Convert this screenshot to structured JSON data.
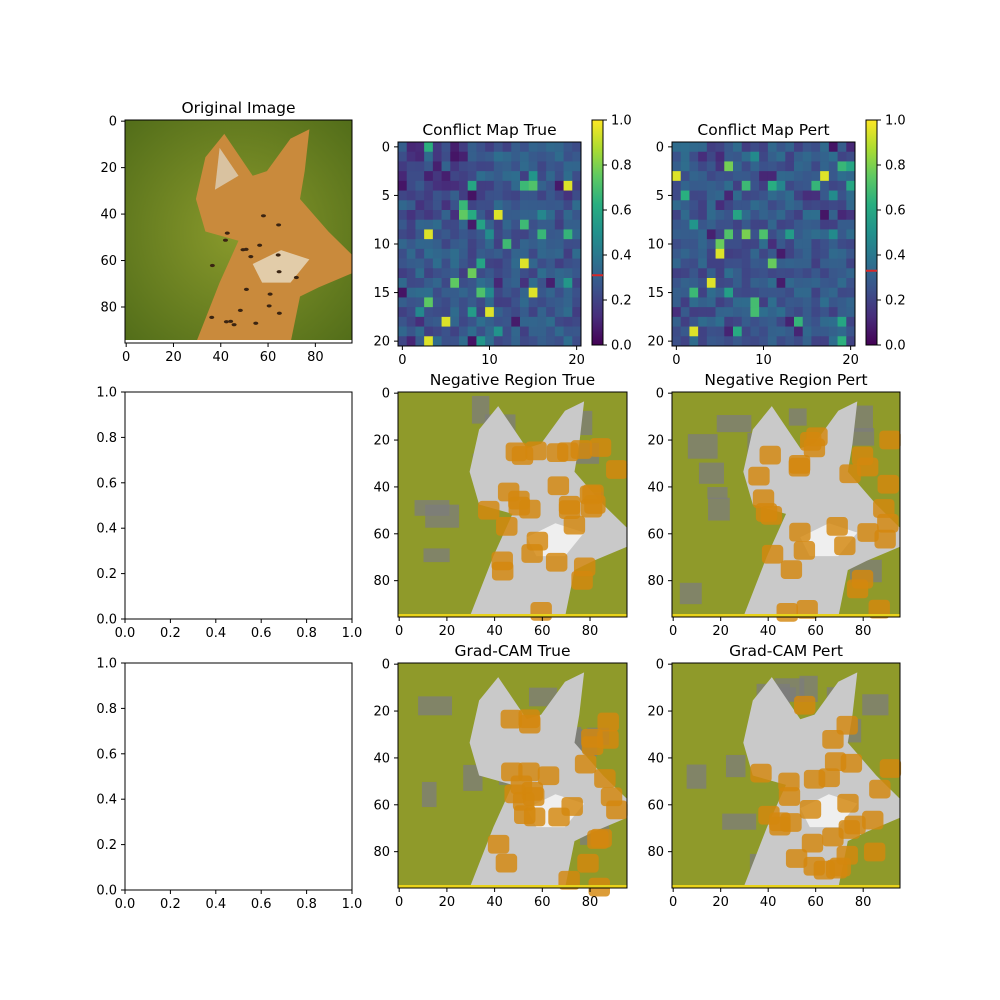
{
  "chart_data": [
    {
      "type": "image",
      "title": "Original Image",
      "x_ticks": [
        0,
        20,
        40,
        60,
        80
      ],
      "y_ticks": [
        0,
        20,
        40,
        60,
        80
      ],
      "xlim": [
        -0.5,
        95.5
      ],
      "ylim": [
        95.5,
        -0.5
      ]
    },
    {
      "type": "heatmap",
      "title": "Conflict Map True",
      "grid_size": 21,
      "x_ticks": [
        0,
        10,
        20
      ],
      "y_ticks": [
        0,
        5,
        10,
        15,
        20
      ],
      "colorbar": {
        "colormap": "viridis",
        "min": 0.0,
        "max": 1.0,
        "ticks": [
          "0.0",
          "0.2",
          "0.4",
          "0.6",
          "0.8",
          "1.0"
        ],
        "marker": 0.31,
        "marker_color": "#d62728"
      },
      "seed": 11,
      "gradient": true
    },
    {
      "type": "heatmap",
      "title": "Conflict Map Pert",
      "grid_size": 21,
      "x_ticks": [
        0,
        10,
        20
      ],
      "y_ticks": [
        0,
        5,
        10,
        15,
        20
      ],
      "colorbar": {
        "colormap": "viridis",
        "min": 0.0,
        "max": 1.0,
        "ticks": [
          "0.0",
          "0.2",
          "0.4",
          "0.6",
          "0.8",
          "1.0"
        ],
        "marker": 0.33,
        "marker_color": "#d62728"
      },
      "seed": 29,
      "gradient": false
    },
    {
      "type": "empty",
      "title": "",
      "x_ticks": [
        "0.0",
        "0.2",
        "0.4",
        "0.6",
        "0.8",
        "1.0"
      ],
      "y_ticks": [
        "0.0",
        "0.2",
        "0.4",
        "0.6",
        "0.8",
        "1.0"
      ],
      "xlim": [
        0,
        1
      ],
      "ylim": [
        0,
        1
      ]
    },
    {
      "type": "overlay",
      "title": "Negative Region True",
      "x_ticks": [
        0,
        20,
        40,
        60,
        80
      ],
      "y_ticks": [
        0,
        20,
        40,
        60,
        80
      ],
      "seed": 5
    },
    {
      "type": "overlay",
      "title": "Negative Region Pert",
      "x_ticks": [
        0,
        20,
        40,
        60,
        80
      ],
      "y_ticks": [
        0,
        20,
        40,
        60,
        80
      ],
      "seed": 17
    },
    {
      "type": "empty",
      "title": "",
      "x_ticks": [
        "0.0",
        "0.2",
        "0.4",
        "0.6",
        "0.8",
        "1.0"
      ],
      "y_ticks": [
        "0.0",
        "0.2",
        "0.4",
        "0.6",
        "0.8",
        "1.0"
      ],
      "xlim": [
        0,
        1
      ],
      "ylim": [
        0,
        1
      ]
    },
    {
      "type": "overlay",
      "title": "Grad-CAM True",
      "x_ticks": [
        0,
        20,
        40,
        60,
        80
      ],
      "y_ticks": [
        0,
        20,
        40,
        60,
        80
      ],
      "seed": 23
    },
    {
      "type": "overlay",
      "title": "Grad-CAM Pert",
      "x_ticks": [
        0,
        20,
        40,
        60,
        80
      ],
      "y_ticks": [
        0,
        20,
        40,
        60,
        80
      ],
      "seed": 41
    }
  ]
}
